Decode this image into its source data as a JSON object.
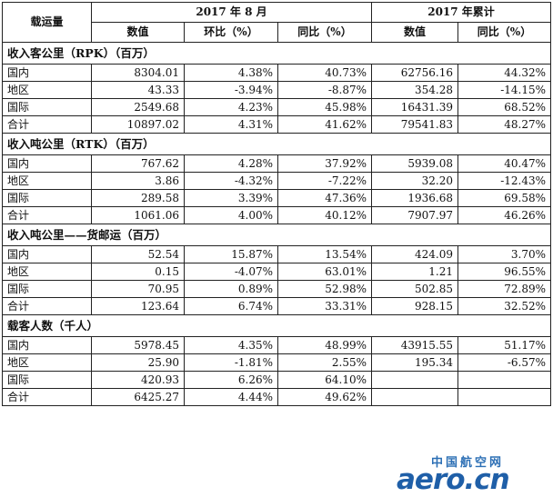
{
  "header": {
    "corner": "载运量",
    "group1": "2017 年 8 月",
    "group2": "2017 年累计",
    "col_value": "数值",
    "col_mom": "环比（%）",
    "col_yoy": "同比（%）",
    "col_value2": "数值",
    "col_yoy2": "同比（%）"
  },
  "sections": [
    {
      "title": "收入客公里（RPK）（百万）",
      "rows": [
        {
          "label": "国内",
          "value": "8304.01",
          "mom": "4.38%",
          "yoy": "40.73%",
          "cum_value": "62756.16",
          "cum_yoy": "44.32%"
        },
        {
          "label": "地区",
          "value": "43.33",
          "mom": "-3.94%",
          "yoy": "-8.87%",
          "cum_value": "354.28",
          "cum_yoy": "-14.15%"
        },
        {
          "label": "国际",
          "value": "2549.68",
          "mom": "4.23%",
          "yoy": "45.98%",
          "cum_value": "16431.39",
          "cum_yoy": "68.52%"
        },
        {
          "label": "合计",
          "value": "10897.02",
          "mom": "4.31%",
          "yoy": "41.62%",
          "cum_value": "79541.83",
          "cum_yoy": "48.27%"
        }
      ]
    },
    {
      "title": "收入吨公里（RTK）（百万）",
      "rows": [
        {
          "label": "国内",
          "value": "767.62",
          "mom": "4.28%",
          "yoy": "37.92%",
          "cum_value": "5939.08",
          "cum_yoy": "40.47%"
        },
        {
          "label": "地区",
          "value": "3.86",
          "mom": "-4.32%",
          "yoy": "-7.22%",
          "cum_value": "32.20",
          "cum_yoy": "-12.43%"
        },
        {
          "label": "国际",
          "value": "289.58",
          "mom": "3.39%",
          "yoy": "47.36%",
          "cum_value": "1936.68",
          "cum_yoy": "69.58%"
        },
        {
          "label": "合计",
          "value": "1061.06",
          "mom": "4.00%",
          "yoy": "40.12%",
          "cum_value": "7907.97",
          "cum_yoy": "46.26%"
        }
      ]
    },
    {
      "title": "收入吨公里——货邮运（百万）",
      "rows": [
        {
          "label": "国内",
          "value": "52.54",
          "mom": "15.87%",
          "yoy": "13.54%",
          "cum_value": "424.09",
          "cum_yoy": "3.70%"
        },
        {
          "label": "地区",
          "value": "0.15",
          "mom": "-4.07%",
          "yoy": "63.01%",
          "cum_value": "1.21",
          "cum_yoy": "96.55%"
        },
        {
          "label": "国际",
          "value": "70.95",
          "mom": "0.89%",
          "yoy": "52.98%",
          "cum_value": "502.85",
          "cum_yoy": "72.89%"
        },
        {
          "label": "合计",
          "value": "123.64",
          "mom": "6.74%",
          "yoy": "33.31%",
          "cum_value": "928.15",
          "cum_yoy": "32.52%"
        }
      ]
    },
    {
      "title": "载客人数（千人）",
      "rows": [
        {
          "label": "国内",
          "value": "5978.45",
          "mom": "4.35%",
          "yoy": "48.99%",
          "cum_value": "43915.55",
          "cum_yoy": "51.17%"
        },
        {
          "label": "地区",
          "value": "25.90",
          "mom": "-1.81%",
          "yoy": "2.55%",
          "cum_value": "195.34",
          "cum_yoy": "-6.57%"
        },
        {
          "label": "国际",
          "value": "420.93",
          "mom": "6.26%",
          "yoy": "64.10%",
          "cum_value": "",
          "cum_yoy": ""
        },
        {
          "label": "合计",
          "value": "6425.27",
          "mom": "4.44%",
          "yoy": "49.62%",
          "cum_value": "",
          "cum_yoy": ""
        }
      ]
    }
  ],
  "watermark": {
    "cn": "中国航空网",
    "logo": "aero.cn"
  }
}
